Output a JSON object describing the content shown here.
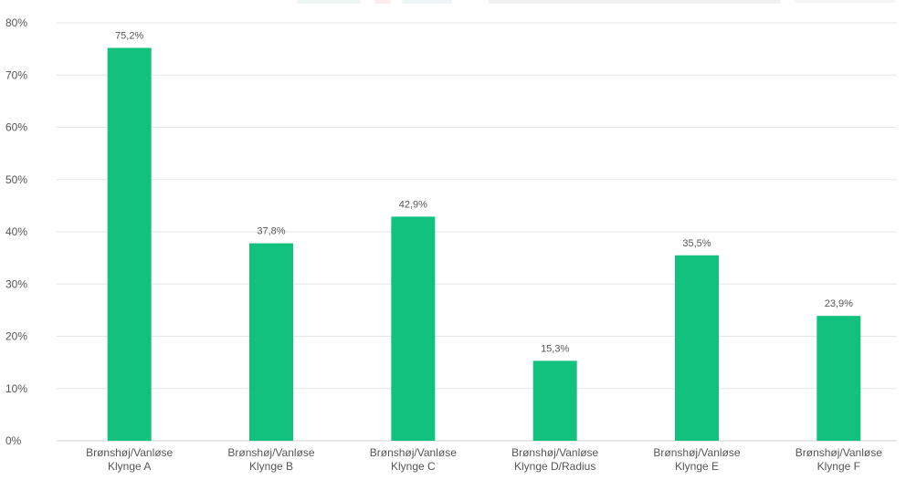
{
  "chart_data": {
    "type": "bar",
    "title": "",
    "xlabel": "",
    "ylabel": "",
    "ylim": [
      0,
      80
    ],
    "yticks": [
      0,
      10,
      20,
      30,
      40,
      50,
      60,
      70,
      80
    ],
    "y_tick_labels": [
      "0%",
      "10%",
      "20%",
      "30%",
      "40%",
      "50%",
      "60%",
      "70%",
      "80%"
    ],
    "grid": true,
    "categories": [
      [
        "Brønshøj/Vanløse",
        "Klynge A"
      ],
      [
        "Brønshøj/Vanløse",
        "Klynge B"
      ],
      [
        "Brønshøj/Vanløse",
        "Klynge C"
      ],
      [
        "Brønshøj/Vanløse",
        "Klynge D/Radius"
      ],
      [
        "Brønshøj/Vanløse",
        "Klynge E"
      ],
      [
        "Brønshøj/Vanløse",
        "Klynge F"
      ]
    ],
    "values": [
      75.2,
      37.8,
      42.9,
      15.3,
      35.5,
      23.9
    ],
    "data_labels": [
      "75,2%",
      "37,8%",
      "42,9%",
      "15,3%",
      "35,5%",
      "23,9%"
    ],
    "bar_color": "#12c17d",
    "legend": "top"
  }
}
